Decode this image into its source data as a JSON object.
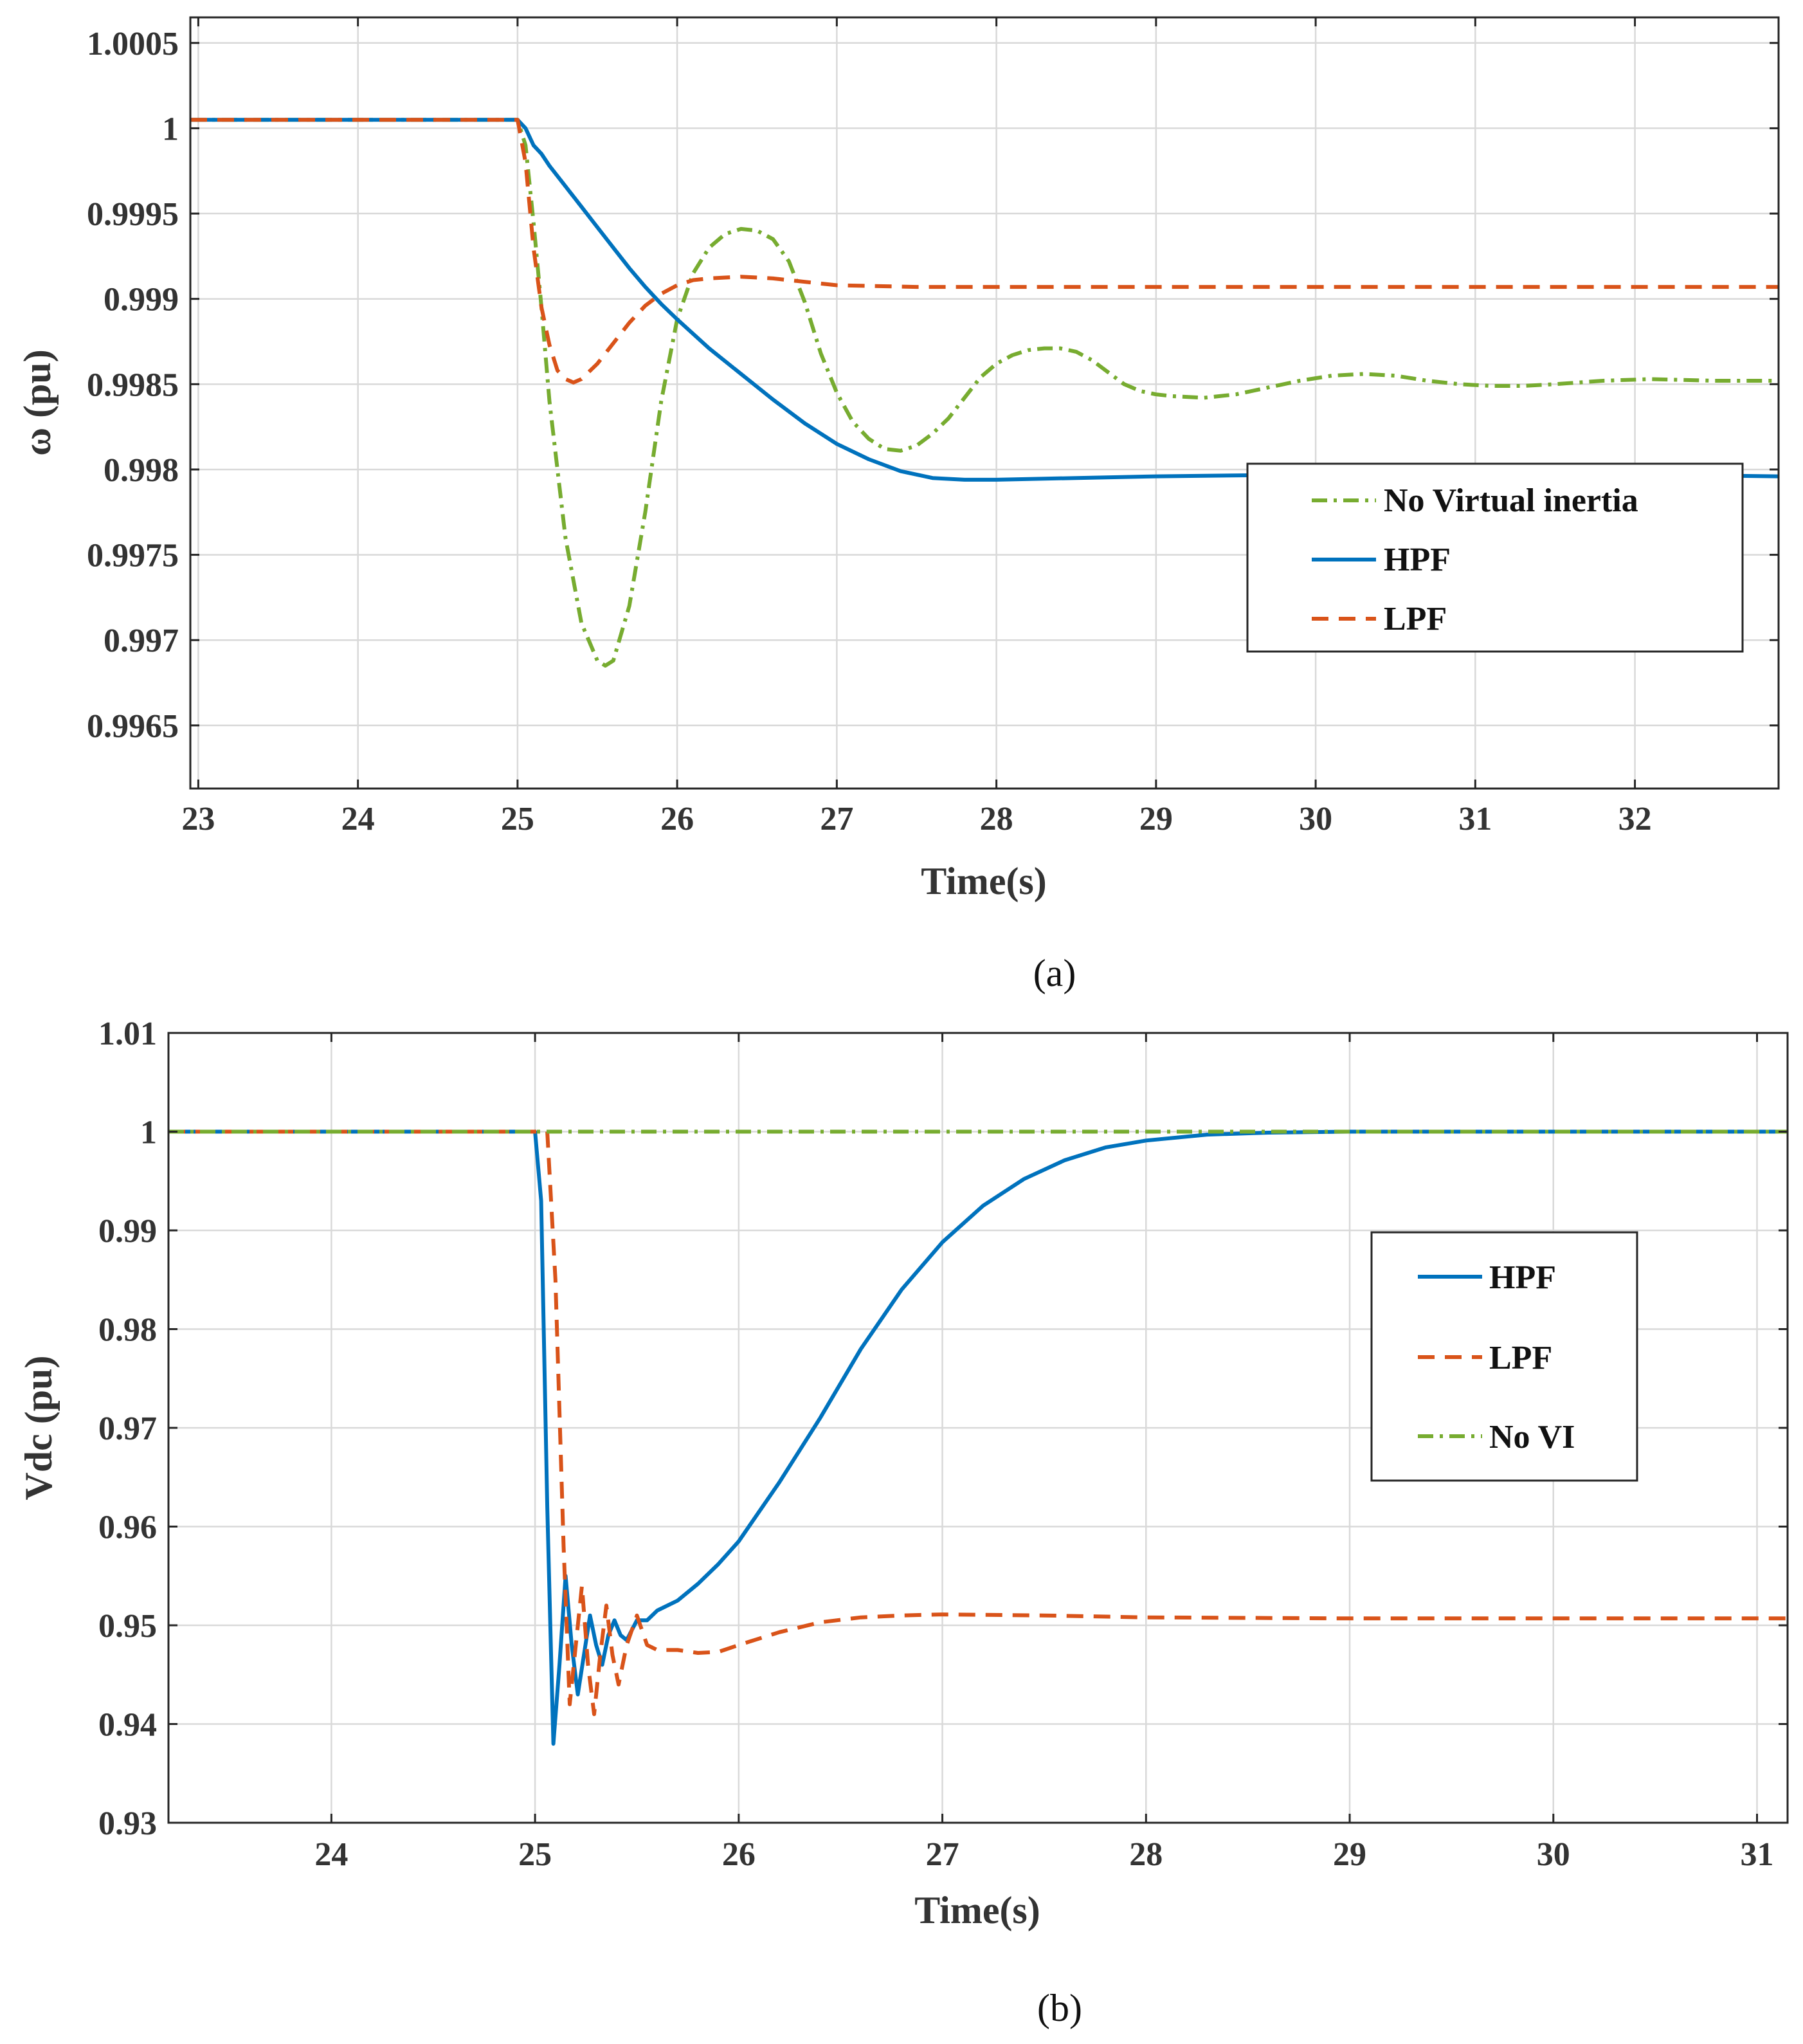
{
  "colors": {
    "green": "#77AC30",
    "blue": "#0072BD",
    "orange": "#D95319"
  },
  "chart_data": [
    {
      "type": "line",
      "panel": "a",
      "caption": "(a)",
      "xlabel": "Time(s)",
      "ylabel": "ω (pu)",
      "xlim": [
        22.95,
        32.9
      ],
      "ylim": [
        0.99613,
        1.00065
      ],
      "xticks": [
        23,
        24,
        25,
        26,
        27,
        28,
        29,
        30,
        31,
        32
      ],
      "yticks": [
        0.9965,
        0.997,
        0.9975,
        0.998,
        0.9985,
        0.999,
        0.9995,
        1,
        1.0005
      ],
      "ytick_labels": [
        "0.9965",
        "0.997",
        "0.9975",
        "0.998",
        "0.9985",
        "0.999",
        "0.9995",
        "1",
        "1.0005"
      ],
      "grid": true,
      "legend_position": "center-right",
      "series": [
        {
          "name": "No Virtual inertia",
          "color": "#77AC30",
          "dash": "dashdot",
          "points": [
            [
              22.95,
              1.00005
            ],
            [
              25.0,
              1.00005
            ],
            [
              25.05,
              0.9999
            ],
            [
              25.1,
              0.99945
            ],
            [
              25.15,
              0.99895
            ],
            [
              25.2,
              0.9984
            ],
            [
              25.3,
              0.9976
            ],
            [
              25.4,
              0.9971
            ],
            [
              25.5,
              0.99688
            ],
            [
              25.55,
              0.99685
            ],
            [
              25.6,
              0.99688
            ],
            [
              25.7,
              0.9972
            ],
            [
              25.8,
              0.99775
            ],
            [
              25.9,
              0.9984
            ],
            [
              26.0,
              0.99888
            ],
            [
              26.1,
              0.99915
            ],
            [
              26.2,
              0.9993
            ],
            [
              26.3,
              0.99938
            ],
            [
              26.4,
              0.99941
            ],
            [
              26.5,
              0.9994
            ],
            [
              26.6,
              0.99935
            ],
            [
              26.7,
              0.99922
            ],
            [
              26.8,
              0.99898
            ],
            [
              26.9,
              0.99868
            ],
            [
              27.0,
              0.99845
            ],
            [
              27.1,
              0.99828
            ],
            [
              27.2,
              0.99818
            ],
            [
              27.3,
              0.99812
            ],
            [
              27.4,
              0.99811
            ],
            [
              27.5,
              0.99814
            ],
            [
              27.6,
              0.99821
            ],
            [
              27.7,
              0.9983
            ],
            [
              27.8,
              0.99842
            ],
            [
              27.9,
              0.99854
            ],
            [
              28.0,
              0.99862
            ],
            [
              28.1,
              0.99867
            ],
            [
              28.2,
              0.9987
            ],
            [
              28.3,
              0.99871
            ],
            [
              28.4,
              0.99871
            ],
            [
              28.5,
              0.99869
            ],
            [
              28.6,
              0.99864
            ],
            [
              28.7,
              0.99857
            ],
            [
              28.8,
              0.9985
            ],
            [
              28.9,
              0.99846
            ],
            [
              29.0,
              0.99844
            ],
            [
              29.1,
              0.99843
            ],
            [
              29.3,
              0.99842
            ],
            [
              29.5,
              0.99844
            ],
            [
              29.7,
              0.99848
            ],
            [
              29.9,
              0.99852
            ],
            [
              30.1,
              0.99855
            ],
            [
              30.3,
              0.99856
            ],
            [
              30.5,
              0.99855
            ],
            [
              30.7,
              0.99852
            ],
            [
              30.9,
              0.9985
            ],
            [
              31.1,
              0.99849
            ],
            [
              31.3,
              0.99849
            ],
            [
              31.5,
              0.9985
            ],
            [
              31.8,
              0.99852
            ],
            [
              32.1,
              0.99853
            ],
            [
              32.5,
              0.99852
            ],
            [
              32.9,
              0.99852
            ]
          ]
        },
        {
          "name": "HPF",
          "color": "#0072BD",
          "dash": "solid",
          "points": [
            [
              22.95,
              1.00005
            ],
            [
              25.0,
              1.00005
            ],
            [
              25.05,
              1.0
            ],
            [
              25.1,
              0.9999
            ],
            [
              25.15,
              0.99985
            ],
            [
              25.2,
              0.99978
            ],
            [
              25.3,
              0.99966
            ],
            [
              25.4,
              0.99954
            ],
            [
              25.5,
              0.99942
            ],
            [
              25.6,
              0.9993
            ],
            [
              25.7,
              0.99918
            ],
            [
              25.8,
              0.99907
            ],
            [
              25.9,
              0.99897
            ],
            [
              26.0,
              0.99888
            ],
            [
              26.2,
              0.99871
            ],
            [
              26.4,
              0.99856
            ],
            [
              26.6,
              0.99841
            ],
            [
              26.8,
              0.99827
            ],
            [
              27.0,
              0.99815
            ],
            [
              27.2,
              0.99806
            ],
            [
              27.4,
              0.99799
            ],
            [
              27.6,
              0.99795
            ],
            [
              27.8,
              0.99794
            ],
            [
              28.0,
              0.99794
            ],
            [
              28.5,
              0.99795
            ],
            [
              29.0,
              0.99796
            ],
            [
              30.0,
              0.99797
            ],
            [
              31.0,
              0.99797
            ],
            [
              32.0,
              0.99797
            ],
            [
              32.9,
              0.99796
            ]
          ]
        },
        {
          "name": "LPF",
          "color": "#D95319",
          "dash": "dashed",
          "points": [
            [
              22.95,
              1.00005
            ],
            [
              25.0,
              1.00005
            ],
            [
              25.05,
              0.9998
            ],
            [
              25.1,
              0.9993
            ],
            [
              25.15,
              0.99895
            ],
            [
              25.2,
              0.99873
            ],
            [
              25.25,
              0.99858
            ],
            [
              25.3,
              0.99853
            ],
            [
              25.35,
              0.99851
            ],
            [
              25.4,
              0.99853
            ],
            [
              25.5,
              0.99862
            ],
            [
              25.6,
              0.99874
            ],
            [
              25.7,
              0.99886
            ],
            [
              25.8,
              0.99896
            ],
            [
              25.9,
              0.99903
            ],
            [
              26.0,
              0.99908
            ],
            [
              26.1,
              0.99911
            ],
            [
              26.2,
              0.99912
            ],
            [
              26.4,
              0.99913
            ],
            [
              26.6,
              0.99912
            ],
            [
              26.8,
              0.9991
            ],
            [
              27.0,
              0.99908
            ],
            [
              27.5,
              0.99907
            ],
            [
              28.0,
              0.99907
            ],
            [
              29.0,
              0.99907
            ],
            [
              30.0,
              0.99907
            ],
            [
              31.0,
              0.99907
            ],
            [
              32.0,
              0.99907
            ],
            [
              32.9,
              0.99907
            ]
          ]
        }
      ]
    },
    {
      "type": "line",
      "panel": "b",
      "caption": "(b)",
      "xlabel": "Time(s)",
      "ylabel": "Vdc (pu)",
      "xlim": [
        23.2,
        31.15
      ],
      "ylim": [
        0.93,
        1.01
      ],
      "xticks": [
        24,
        25,
        26,
        27,
        28,
        29,
        30,
        31
      ],
      "yticks": [
        0.93,
        0.94,
        0.95,
        0.96,
        0.97,
        0.98,
        0.99,
        1,
        1.01
      ],
      "ytick_labels": [
        "0.93",
        "0.94",
        "0.95",
        "0.96",
        "0.97",
        "0.98",
        "0.99",
        "1",
        "1.01"
      ],
      "grid": true,
      "legend_position": "top-right",
      "series": [
        {
          "name": "HPF",
          "color": "#0072BD",
          "dash": "solid",
          "points": [
            [
              23.2,
              1.0
            ],
            [
              25.0,
              1.0
            ],
            [
              25.03,
              0.993
            ],
            [
              25.06,
              0.962
            ],
            [
              25.09,
              0.938
            ],
            [
              25.12,
              0.946
            ],
            [
              25.15,
              0.955
            ],
            [
              25.18,
              0.948
            ],
            [
              25.21,
              0.943
            ],
            [
              25.24,
              0.947
            ],
            [
              25.27,
              0.951
            ],
            [
              25.3,
              0.948
            ],
            [
              25.33,
              0.946
            ],
            [
              25.36,
              0.949
            ],
            [
              25.39,
              0.9505
            ],
            [
              25.42,
              0.949
            ],
            [
              25.45,
              0.9485
            ],
            [
              25.5,
              0.9505
            ],
            [
              25.55,
              0.9505
            ],
            [
              25.6,
              0.9515
            ],
            [
              25.7,
              0.9525
            ],
            [
              25.8,
              0.9542
            ],
            [
              25.9,
              0.9562
            ],
            [
              26.0,
              0.9585
            ],
            [
              26.2,
              0.9645
            ],
            [
              26.4,
              0.971
            ],
            [
              26.6,
              0.978
            ],
            [
              26.8,
              0.984
            ],
            [
              27.0,
              0.9888
            ],
            [
              27.2,
              0.9925
            ],
            [
              27.4,
              0.9952
            ],
            [
              27.6,
              0.9971
            ],
            [
              27.8,
              0.9984
            ],
            [
              28.0,
              0.9991
            ],
            [
              28.3,
              0.9997
            ],
            [
              28.6,
              0.9999
            ],
            [
              29.0,
              1.0
            ],
            [
              30.0,
              1.0
            ],
            [
              31.15,
              1.0
            ]
          ]
        },
        {
          "name": "LPF",
          "color": "#D95319",
          "dash": "dashed",
          "points": [
            [
              23.2,
              1.0
            ],
            [
              25.06,
              1.0
            ],
            [
              25.1,
              0.985
            ],
            [
              25.14,
              0.958
            ],
            [
              25.17,
              0.942
            ],
            [
              25.2,
              0.948
            ],
            [
              25.23,
              0.954
            ],
            [
              25.26,
              0.946
            ],
            [
              25.29,
              0.941
            ],
            [
              25.32,
              0.947
            ],
            [
              25.35,
              0.952
            ],
            [
              25.38,
              0.947
            ],
            [
              25.41,
              0.944
            ],
            [
              25.45,
              0.948
            ],
            [
              25.5,
              0.951
            ],
            [
              25.55,
              0.948
            ],
            [
              25.6,
              0.9475
            ],
            [
              25.7,
              0.9475
            ],
            [
              25.8,
              0.9472
            ],
            [
              25.9,
              0.9473
            ],
            [
              26.0,
              0.948
            ],
            [
              26.2,
              0.9493
            ],
            [
              26.4,
              0.9503
            ],
            [
              26.6,
              0.9508
            ],
            [
              26.8,
              0.951
            ],
            [
              27.0,
              0.9511
            ],
            [
              27.5,
              0.951
            ],
            [
              28.0,
              0.9508
            ],
            [
              29.0,
              0.9507
            ],
            [
              30.0,
              0.9507
            ],
            [
              31.15,
              0.9507
            ]
          ]
        },
        {
          "name": "No VI",
          "color": "#77AC30",
          "dash": "dashdot",
          "points": [
            [
              23.2,
              1.0
            ],
            [
              31.15,
              1.0
            ]
          ]
        }
      ]
    }
  ]
}
